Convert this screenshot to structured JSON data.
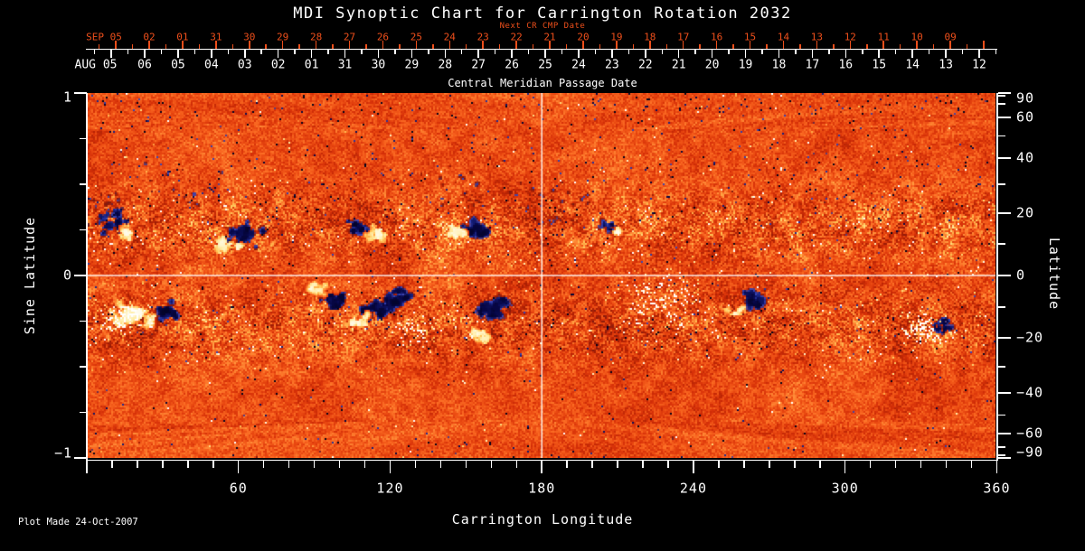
{
  "footer": {
    "plot_made": "Plot Made 24-Oct-2007"
  },
  "colors": {
    "background": "#000000",
    "axis": "#ffffff",
    "secondary_axis": "#ee4f1b",
    "grid_line": "#ffffff"
  },
  "chart_data": {
    "type": "heatmap",
    "title": "MDI Synoptic Chart for Carrington Rotation 2032",
    "xlabel": "Carrington Longitude",
    "xlim": [
      0,
      360
    ],
    "xticks": [
      60,
      120,
      180,
      240,
      300,
      360
    ],
    "xtick_minor_step_deg": 10,
    "ylabel_left": "Sine Latitude",
    "ylim_left": [
      -1,
      1
    ],
    "yticks_left": [
      1,
      0,
      -1
    ],
    "ytick_left_minor_step": 0.25,
    "ylabel_right": "Latitude",
    "yticks_right": [
      90,
      60,
      40,
      20,
      0,
      -20,
      -40,
      -60,
      -90
    ],
    "ytick_right_step_deg": 10,
    "grid_lines": {
      "equator_lat": 0,
      "meridian_lon": 180
    },
    "top_axis_red": {
      "label": "Next CR CMP Date",
      "start_label": "SEP 05",
      "days": [
        "02",
        "01",
        "31",
        "30",
        "29",
        "28",
        "27",
        "26",
        "25",
        "24",
        "23",
        "22",
        "21",
        "20",
        "19",
        "18",
        "17",
        "16",
        "15",
        "14",
        "13",
        "12",
        "11",
        "10",
        "09"
      ]
    },
    "top_axis_white": {
      "label": "Central Meridian Passage Date",
      "start_label": "AUG 05",
      "days": [
        "06",
        "05",
        "04",
        "03",
        "02",
        "01",
        "31",
        "30",
        "29",
        "28",
        "27",
        "26",
        "25",
        "24",
        "23",
        "22",
        "21",
        "20",
        "19",
        "18",
        "17",
        "16",
        "15",
        "14",
        "13",
        "12"
      ]
    },
    "palette": {
      "stops": [
        [
          0.0,
          "#020218"
        ],
        [
          0.08,
          "#060646"
        ],
        [
          0.15,
          "#192382"
        ],
        [
          0.21,
          "#3a46b9"
        ],
        [
          0.245,
          "#5a3c78"
        ],
        [
          0.28,
          "#7d190f"
        ],
        [
          0.38,
          "#a81e03"
        ],
        [
          0.5,
          "#d63008"
        ],
        [
          0.6,
          "#eb4b12"
        ],
        [
          0.7,
          "#fa6922"
        ],
        [
          0.79,
          "#ff913a"
        ],
        [
          0.87,
          "#ffc858"
        ],
        [
          0.93,
          "#ffeeaa"
        ],
        [
          1.0,
          "#ffffff"
        ]
      ]
    },
    "active_regions": [
      {
        "lon": 11,
        "lat": 17,
        "polarity": "negative",
        "size": 1.6,
        "spread": 5,
        "shape": "blob"
      },
      {
        "lon": 15.5,
        "lat": 13.5,
        "polarity": "positive",
        "size": 1.1,
        "spread": 3,
        "shape": "blob"
      },
      {
        "lon": 6,
        "lat": 22,
        "polarity": "negative",
        "size": 0.6,
        "spread": 7,
        "shape": "scatter"
      },
      {
        "lon": 62,
        "lat": 13,
        "polarity": "negative",
        "size": 2.2,
        "spread": 5,
        "shape": "blob"
      },
      {
        "lon": 55,
        "lat": 10,
        "polarity": "positive",
        "size": 1.7,
        "spread": 4,
        "shape": "blob"
      },
      {
        "lon": 108,
        "lat": 15,
        "polarity": "negative",
        "size": 1.3,
        "spread": 4,
        "shape": "blob"
      },
      {
        "lon": 114,
        "lat": 13,
        "polarity": "positive",
        "size": 1.0,
        "spread": 3,
        "shape": "blob"
      },
      {
        "lon": 154,
        "lat": 15,
        "polarity": "negative",
        "size": 1.6,
        "spread": 4,
        "shape": "blob"
      },
      {
        "lon": 147,
        "lat": 14,
        "polarity": "positive",
        "size": 1.1,
        "spread": 3,
        "shape": "blob"
      },
      {
        "lon": 206,
        "lat": 16,
        "polarity": "negative",
        "size": 0.7,
        "spread": 3,
        "shape": "blob"
      },
      {
        "lon": 210,
        "lat": 14,
        "polarity": "positive",
        "size": 0.5,
        "spread": 2,
        "shape": "blob"
      },
      {
        "lon": 40,
        "lat": 28,
        "polarity": "negative",
        "size": 0.6,
        "spread": 14,
        "shape": "scatter"
      },
      {
        "lon": 150,
        "lat": 30,
        "polarity": "negative",
        "size": 0.6,
        "spread": 16,
        "shape": "scatter"
      },
      {
        "lon": 185,
        "lat": 24,
        "polarity": "negative",
        "size": 0.7,
        "spread": 12,
        "shape": "scatter"
      },
      {
        "lon": 18,
        "lat": -12,
        "polarity": "positive",
        "size": 2.3,
        "spread": 6,
        "shape": "blob"
      },
      {
        "lon": 13,
        "lat": -14,
        "polarity": "positive",
        "size": 1.2,
        "spread": 9,
        "shape": "plage"
      },
      {
        "lon": 32,
        "lat": -11,
        "polarity": "negative",
        "size": 1.5,
        "spread": 4,
        "shape": "blob"
      },
      {
        "lon": 97,
        "lat": -7,
        "polarity": "negative",
        "size": 1.2,
        "spread": 6,
        "shape": "sprawl"
      },
      {
        "lon": 90,
        "lat": -4,
        "polarity": "positive",
        "size": 0.8,
        "spread": 4,
        "shape": "blob"
      },
      {
        "lon": 120,
        "lat": -10,
        "polarity": "negative",
        "size": 2.6,
        "spread": 8,
        "shape": "sprawl"
      },
      {
        "lon": 108,
        "lat": -14,
        "polarity": "positive",
        "size": 1.2,
        "spread": 4,
        "shape": "blob"
      },
      {
        "lon": 130,
        "lat": -18,
        "polarity": "positive",
        "size": 0.8,
        "spread": 8,
        "shape": "plage"
      },
      {
        "lon": 161,
        "lat": -10,
        "polarity": "negative",
        "size": 2.0,
        "spread": 7,
        "shape": "sprawl"
      },
      {
        "lon": 155,
        "lat": -19,
        "polarity": "positive",
        "size": 1.0,
        "spread": 3,
        "shape": "blob"
      },
      {
        "lon": 228,
        "lat": -8,
        "polarity": "positive",
        "size": 2.0,
        "spread": 14,
        "shape": "plage"
      },
      {
        "lon": 263,
        "lat": -7,
        "polarity": "negative",
        "size": 1.7,
        "spread": 4,
        "shape": "blob"
      },
      {
        "lon": 256,
        "lat": -11,
        "polarity": "positive",
        "size": 0.7,
        "spread": 3,
        "shape": "blob"
      },
      {
        "lon": 338,
        "lat": -16,
        "polarity": "negative",
        "size": 1.4,
        "spread": 4,
        "shape": "blob"
      },
      {
        "lon": 330,
        "lat": -17,
        "polarity": "positive",
        "size": 1.3,
        "spread": 6,
        "shape": "plage"
      }
    ]
  }
}
